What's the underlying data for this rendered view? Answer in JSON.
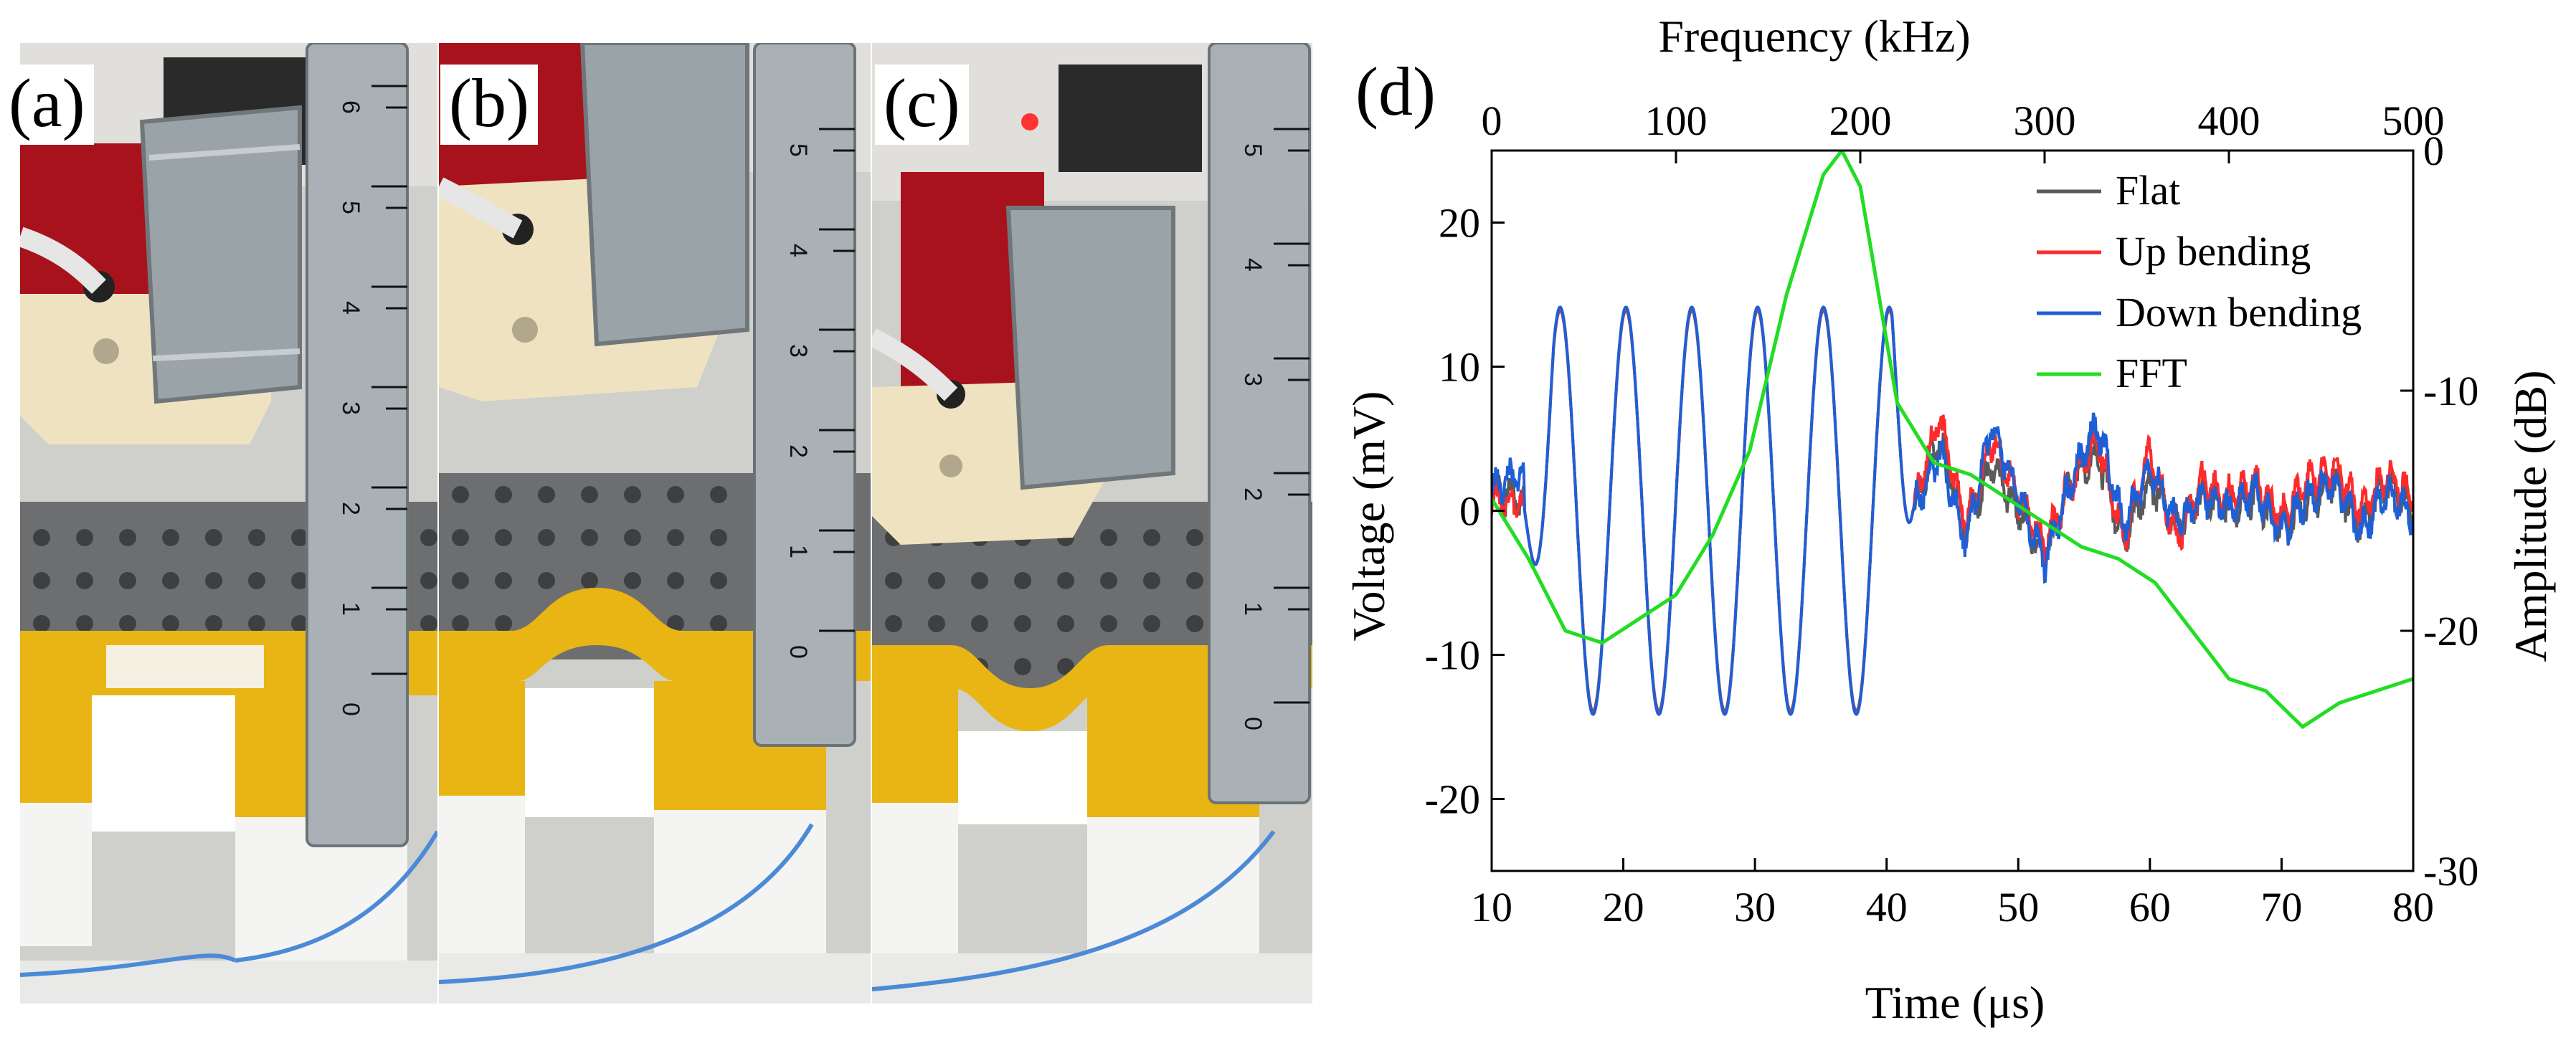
{
  "panels": {
    "a": "(a)",
    "b": "(b)",
    "c": "(c)",
    "d": "(d)"
  },
  "ruler": {
    "ticks_a": [
      "6",
      "5",
      "4",
      "3",
      "2",
      "1",
      "0"
    ],
    "ticks_b": [
      "5",
      "4",
      "3",
      "2",
      "1",
      "0"
    ],
    "ticks_c": [
      "5",
      "4",
      "3",
      "2",
      "1",
      "0"
    ]
  },
  "colors": {
    "tape": "#e8b514",
    "tape_dark": "#c98f06",
    "rubber": "#a8121c",
    "metal": "#9aa3a8",
    "plastic": "#efe2c0",
    "white_block": "#f4f4f2",
    "wire": "#4b8ad6",
    "flat": "#5a5a5a",
    "up": "#ff2b2b",
    "down": "#1f5fd6",
    "fft": "#22dd22"
  },
  "chart_data": {
    "type": "line",
    "title": "",
    "xlabel": "Time (μs)",
    "ylabel": "Voltage (mV)",
    "x2label": "Frequency (kHz)",
    "y2label": "Amplitude (dB)",
    "xlim": [
      10,
      80
    ],
    "ylim": [
      -25,
      25
    ],
    "x2lim": [
      0,
      500
    ],
    "y2lim": [
      -30,
      0
    ],
    "xticks": [
      "10",
      "20",
      "30",
      "40",
      "50",
      "60",
      "70",
      "80"
    ],
    "yticks": [
      "20",
      "10",
      "0",
      "-10",
      "-20"
    ],
    "x2ticks": [
      "0",
      "100",
      "200",
      "300",
      "400",
      "500"
    ],
    "y2ticks": [
      "0",
      "-10",
      "-20",
      "-30"
    ],
    "legend": [
      "Flat",
      "Up bending",
      "Down bending",
      "FFT"
    ],
    "legend_position": "top-right",
    "grid": false,
    "burst": {
      "start_us": 12.5,
      "end_us": 42,
      "freq_khz": 200,
      "amplitude_mv": 14.5
    },
    "series": [
      {
        "name": "Flat",
        "x": [
          10,
          12,
          14,
          15.2,
          17.7,
          20.2,
          22.7,
          25.2,
          27.7,
          30.2,
          32.7,
          35.2,
          37.7,
          40.2,
          42,
          44,
          46,
          48,
          50,
          52,
          54,
          56,
          58,
          60,
          62,
          64,
          66,
          68,
          70,
          72,
          74,
          76,
          78,
          80
        ],
        "y": [
          1.5,
          1,
          0,
          14.5,
          -15.5,
          14.5,
          -13,
          14.5,
          -13.5,
          14.5,
          -12,
          14.5,
          -12.5,
          14,
          0,
          5,
          -1,
          3,
          0,
          -3,
          2,
          4,
          -2,
          2,
          -1,
          1,
          0,
          1,
          -1,
          0.5,
          2,
          -1,
          2,
          0
        ]
      },
      {
        "name": "Up bending",
        "x": [
          10,
          12,
          14,
          15.2,
          17.7,
          20.2,
          22.7,
          25.2,
          27.7,
          30.2,
          32.7,
          35.2,
          37.7,
          40.2,
          42,
          44,
          46,
          48,
          50,
          52,
          54,
          56,
          58,
          60,
          62,
          64,
          66,
          68,
          70,
          72,
          74,
          76,
          78,
          80
        ],
        "y": [
          1,
          0.5,
          0,
          15,
          -15,
          15,
          -13,
          14.5,
          -13,
          15,
          -12,
          15,
          -12.5,
          14.5,
          0,
          6.5,
          -1,
          5,
          1,
          -2.5,
          2,
          5,
          -2,
          4,
          -2,
          2,
          1,
          2,
          -0.5,
          2,
          3,
          0,
          2.5,
          1
        ]
      },
      {
        "name": "Down bending",
        "x": [
          10,
          12,
          14,
          15.2,
          17.7,
          20.2,
          22.7,
          25.2,
          27.7,
          30.2,
          32.7,
          35.2,
          37.7,
          40.2,
          42,
          44,
          46,
          48,
          50,
          52,
          54,
          56,
          58,
          60,
          62,
          64,
          66,
          68,
          70,
          72,
          74,
          76,
          78,
          80
        ],
        "y": [
          1.5,
          2.5,
          0,
          15,
          -16,
          15,
          -13.5,
          14.5,
          -13.5,
          14,
          -12,
          15,
          -13,
          14,
          0,
          4,
          -2,
          6,
          1,
          -3.5,
          2,
          6,
          -1,
          3,
          -1,
          1,
          0,
          1.5,
          -1.5,
          1,
          2,
          -1.5,
          1.5,
          -0.5
        ]
      },
      {
        "name": "FFT",
        "axis": "secondary",
        "freq_khz": [
          0,
          20,
          40,
          60,
          80,
          100,
          120,
          140,
          160,
          180,
          190,
          200,
          220,
          240,
          260,
          280,
          300,
          320,
          340,
          360,
          380,
          400,
          420,
          440,
          460,
          480,
          500
        ],
        "amplitude_db": [
          -14.5,
          -17,
          -20,
          -20.5,
          -19.5,
          -18.5,
          -16,
          -12.5,
          -6,
          -1,
          0,
          -1.5,
          -10.5,
          -13,
          -13.5,
          -14.5,
          -15.5,
          -16.5,
          -17,
          -18,
          -20,
          -22,
          -22.5,
          -24,
          -23,
          -22.5,
          -22
        ]
      }
    ]
  }
}
